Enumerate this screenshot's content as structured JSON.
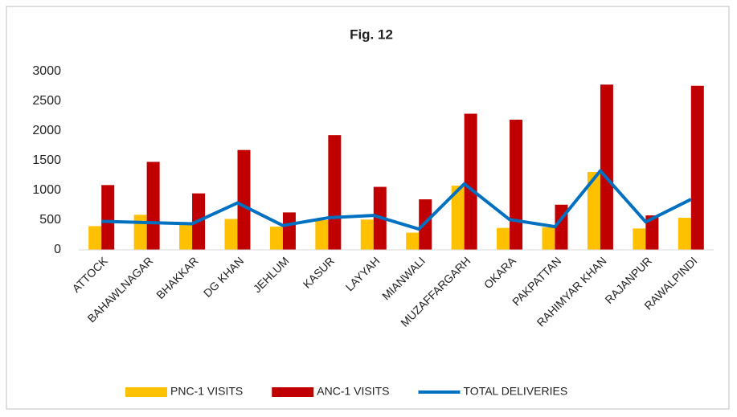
{
  "chart_data": {
    "type": "bar_line",
    "title": "Fig. 12",
    "categories": [
      "ATTOCK",
      "BAHAWLNAGAR",
      "BHAKKAR",
      "DG KHAN",
      "JEHLUM",
      "KASUR",
      "LAYYAH",
      "MIANWALI",
      "MUZAFFARGARH",
      "OKARA",
      "PAKPATTAN",
      "RAHIMYAR KHAN",
      "RAJANPUR",
      "RAWALPINDI"
    ],
    "series": [
      {
        "name": "PNC-1 VISITS",
        "type": "bar",
        "color": "#ffc000",
        "values": [
          400,
          590,
          440,
          520,
          390,
          500,
          510,
          290,
          1080,
          370,
          380,
          1310,
          360,
          540
        ]
      },
      {
        "name": "ANC-1 VISITS",
        "type": "bar",
        "color": "#c00000",
        "values": [
          1090,
          1480,
          950,
          1680,
          630,
          1930,
          1060,
          850,
          2290,
          2190,
          760,
          2780,
          580,
          2760
        ]
      },
      {
        "name": "TOTAL DELIVERIES",
        "type": "line",
        "color": "#0070c0",
        "values": [
          480,
          460,
          440,
          790,
          410,
          540,
          580,
          350,
          1110,
          510,
          390,
          1330,
          470,
          850
        ]
      }
    ],
    "ylim": [
      0,
      3000
    ],
    "yticks": [
      0,
      500,
      1000,
      1500,
      2000,
      2500,
      3000
    ],
    "grid": false,
    "legend": "bottom"
  }
}
